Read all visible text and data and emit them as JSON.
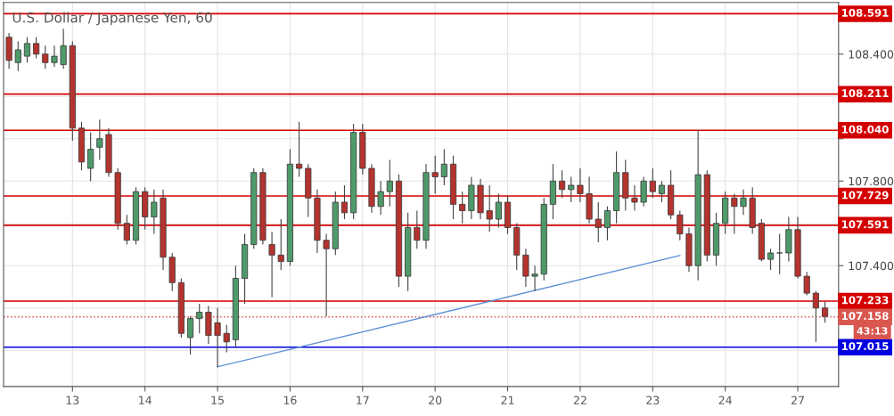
{
  "chart_data": {
    "type": "candlestick",
    "title": "U.S. Dollar / Japanese Yen, 60",
    "categories": [
      null,
      null,
      null,
      null,
      null,
      null,
      null,
      "13",
      null,
      null,
      null,
      null,
      null,
      null,
      null,
      "14",
      null,
      null,
      null,
      null,
      null,
      null,
      null,
      "15",
      null,
      null,
      null,
      null,
      null,
      null,
      null,
      "16",
      null,
      null,
      null,
      null,
      null,
      null,
      null,
      "17",
      null,
      null,
      null,
      null,
      null,
      null,
      null,
      "20",
      null,
      null,
      null,
      null,
      null,
      null,
      null,
      "21",
      null,
      null,
      null,
      null,
      null,
      null,
      null,
      "22",
      null,
      null,
      null,
      null,
      null,
      null,
      null,
      "23",
      null,
      null,
      null,
      null,
      null,
      null,
      null,
      "24",
      null,
      null,
      null,
      null,
      null,
      null,
      null,
      "27",
      null,
      null,
      null
    ],
    "ohlc": [
      [
        108.48,
        108.5,
        108.33,
        108.37
      ],
      [
        108.36,
        108.46,
        108.32,
        108.42
      ],
      [
        108.39,
        108.48,
        108.36,
        108.45
      ],
      [
        108.45,
        108.48,
        108.38,
        108.4
      ],
      [
        108.4,
        108.44,
        108.33,
        108.36
      ],
      [
        108.36,
        108.44,
        108.34,
        108.39
      ],
      [
        108.35,
        108.52,
        108.33,
        108.44
      ],
      [
        108.44,
        108.46,
        107.99,
        108.05
      ],
      [
        108.05,
        108.08,
        107.85,
        107.89
      ],
      [
        107.86,
        108.03,
        107.8,
        107.95
      ],
      [
        107.96,
        108.09,
        107.9,
        108.0
      ],
      [
        108.02,
        108.05,
        107.82,
        107.84
      ],
      [
        107.84,
        107.86,
        107.57,
        107.6
      ],
      [
        107.6,
        107.64,
        107.5,
        107.52
      ],
      [
        107.52,
        107.77,
        107.5,
        107.75
      ],
      [
        107.75,
        107.77,
        107.57,
        107.63
      ],
      [
        107.63,
        107.76,
        107.55,
        107.7
      ],
      [
        107.72,
        107.76,
        107.38,
        107.44
      ],
      [
        107.44,
        107.46,
        107.28,
        107.32
      ],
      [
        107.32,
        107.34,
        107.06,
        107.08
      ],
      [
        107.06,
        107.16,
        106.98,
        107.15
      ],
      [
        107.15,
        107.22,
        107.08,
        107.18
      ],
      [
        107.18,
        107.21,
        107.03,
        107.07
      ],
      [
        107.13,
        107.2,
        106.92,
        107.07
      ],
      [
        107.08,
        107.12,
        106.99,
        107.04
      ],
      [
        107.05,
        107.4,
        107.01,
        107.34
      ],
      [
        107.34,
        107.55,
        107.22,
        107.5
      ],
      [
        107.5,
        107.86,
        107.48,
        107.84
      ],
      [
        107.84,
        107.86,
        107.5,
        107.52
      ],
      [
        107.5,
        107.56,
        107.25,
        107.45
      ],
      [
        107.45,
        107.62,
        107.38,
        107.42
      ],
      [
        107.42,
        107.95,
        107.4,
        107.88
      ],
      [
        107.88,
        108.08,
        107.82,
        107.86
      ],
      [
        107.86,
        107.88,
        107.63,
        107.72
      ],
      [
        107.72,
        107.76,
        107.46,
        107.52
      ],
      [
        107.52,
        107.55,
        107.16,
        107.48
      ],
      [
        107.48,
        107.75,
        107.45,
        107.7
      ],
      [
        107.7,
        107.78,
        107.62,
        107.65
      ],
      [
        107.65,
        108.07,
        107.62,
        108.03
      ],
      [
        108.03,
        108.07,
        107.83,
        107.86
      ],
      [
        107.86,
        107.88,
        107.65,
        107.68
      ],
      [
        107.68,
        107.8,
        107.64,
        107.75
      ],
      [
        107.75,
        107.9,
        107.68,
        107.8
      ],
      [
        107.8,
        107.83,
        107.3,
        107.35
      ],
      [
        107.35,
        107.65,
        107.28,
        107.58
      ],
      [
        107.58,
        107.66,
        107.48,
        107.52
      ],
      [
        107.52,
        107.88,
        107.48,
        107.84
      ],
      [
        107.84,
        107.92,
        107.74,
        107.82
      ],
      [
        107.82,
        107.95,
        107.78,
        107.88
      ],
      [
        107.88,
        107.92,
        107.62,
        107.69
      ],
      [
        107.69,
        107.75,
        107.6,
        107.66
      ],
      [
        107.66,
        107.82,
        107.62,
        107.78
      ],
      [
        107.78,
        107.81,
        107.62,
        107.65
      ],
      [
        107.66,
        107.78,
        107.56,
        107.62
      ],
      [
        107.62,
        107.74,
        107.58,
        107.7
      ],
      [
        107.7,
        107.73,
        107.55,
        107.58
      ],
      [
        107.58,
        107.6,
        107.38,
        107.45
      ],
      [
        107.45,
        107.48,
        107.3,
        107.35
      ],
      [
        107.35,
        107.4,
        107.28,
        107.36
      ],
      [
        107.36,
        107.72,
        107.33,
        107.69
      ],
      [
        107.69,
        107.88,
        107.62,
        107.8
      ],
      [
        107.8,
        107.85,
        107.72,
        107.76
      ],
      [
        107.76,
        107.82,
        107.7,
        107.78
      ],
      [
        107.78,
        107.86,
        107.7,
        107.74
      ],
      [
        107.74,
        107.82,
        107.6,
        107.62
      ],
      [
        107.62,
        107.7,
        107.51,
        107.58
      ],
      [
        107.58,
        107.68,
        107.52,
        107.66
      ],
      [
        107.66,
        107.94,
        107.6,
        107.84
      ],
      [
        107.84,
        107.9,
        107.66,
        107.72
      ],
      [
        107.72,
        107.78,
        107.66,
        107.7
      ],
      [
        107.7,
        107.82,
        107.68,
        107.8
      ],
      [
        107.8,
        107.86,
        107.72,
        107.75
      ],
      [
        107.74,
        107.8,
        107.7,
        107.78
      ],
      [
        107.78,
        107.85,
        107.62,
        107.64
      ],
      [
        107.64,
        107.66,
        107.52,
        107.55
      ],
      [
        107.55,
        107.58,
        107.37,
        107.4
      ],
      [
        107.4,
        108.04,
        107.33,
        107.83
      ],
      [
        107.83,
        107.85,
        107.42,
        107.45
      ],
      [
        107.45,
        107.65,
        107.4,
        107.6
      ],
      [
        107.6,
        107.75,
        107.55,
        107.72
      ],
      [
        107.72,
        107.74,
        107.55,
        107.68
      ],
      [
        107.68,
        107.76,
        107.64,
        107.72
      ],
      [
        107.72,
        107.77,
        107.55,
        107.58
      ],
      [
        107.6,
        107.62,
        107.42,
        107.43
      ],
      [
        107.43,
        107.48,
        107.38,
        107.46
      ],
      [
        107.46,
        107.55,
        107.36,
        107.46
      ],
      [
        107.46,
        107.63,
        107.42,
        107.57
      ],
      [
        107.57,
        107.63,
        107.34,
        107.35
      ],
      [
        107.35,
        107.37,
        107.26,
        107.27
      ],
      [
        107.27,
        107.28,
        107.04,
        107.2
      ],
      [
        107.2,
        107.23,
        107.13,
        107.16
      ]
    ],
    "colors": [
      "#b5332e",
      "#4f9a6a",
      "#4f9a6a",
      "#b5332e",
      "#b5332e",
      "#4f9a6a",
      "#4f9a6a",
      "#b5332e",
      "#b5332e",
      "#4f9a6a",
      "#4f9a6a",
      "#b5332e",
      "#b5332e",
      "#b5332e",
      "#4f9a6a",
      "#b5332e",
      "#4f9a6a",
      "#b5332e",
      "#b5332e",
      "#b5332e",
      "#4f9a6a",
      "#4f9a6a",
      "#b5332e",
      "#b5332e",
      "#b5332e",
      "#4f9a6a",
      "#4f9a6a",
      "#4f9a6a",
      "#b5332e",
      "#b5332e",
      "#b5332e",
      "#4f9a6a",
      "#b5332e",
      "#b5332e",
      "#b5332e",
      "#b5332e",
      "#4f9a6a",
      "#b5332e",
      "#4f9a6a",
      "#b5332e",
      "#b5332e",
      "#4f9a6a",
      "#4f9a6a",
      "#b5332e",
      "#4f9a6a",
      "#b5332e",
      "#4f9a6a",
      "#b5332e",
      "#4f9a6a",
      "#b5332e",
      "#b5332e",
      "#4f9a6a",
      "#b5332e",
      "#b5332e",
      "#4f9a6a",
      "#b5332e",
      "#b5332e",
      "#b5332e",
      "#4f9a6a",
      "#4f9a6a",
      "#4f9a6a",
      "#b5332e",
      "#4f9a6a",
      "#b5332e",
      "#b5332e",
      "#b5332e",
      "#4f9a6a",
      "#4f9a6a",
      "#b5332e",
      "#b5332e",
      "#4f9a6a",
      "#b5332e",
      "#4f9a6a",
      "#b5332e",
      "#b5332e",
      "#b5332e",
      "#4f9a6a",
      "#b5332e",
      "#4f9a6a",
      "#4f9a6a",
      "#b5332e",
      "#4f9a6a",
      "#b5332e",
      "#b5332e",
      "#4f9a6a",
      "#4f9a6a",
      "#4f9a6a",
      "#b5332e",
      "#b5332e",
      "#b5332e",
      "#b5332e"
    ],
    "series": [
      {
        "type": "line",
        "color": "#5b8fd6",
        "values": [
          null,
          null,
          null,
          null,
          null,
          null,
          null,
          null,
          null,
          null,
          null,
          null,
          null,
          null,
          null,
          null,
          null,
          null,
          null,
          null,
          null,
          null,
          null,
          106.922,
          null,
          null,
          null,
          null,
          null,
          null,
          null,
          null,
          null,
          null,
          null,
          null,
          null,
          null,
          null,
          null,
          null,
          null,
          null,
          null,
          null,
          null,
          null,
          null,
          null,
          null,
          null,
          null,
          null,
          null,
          null,
          null,
          null,
          null,
          null,
          null,
          null,
          null,
          null,
          null,
          null,
          null,
          null,
          null,
          null,
          null,
          null,
          null,
          null,
          null,
          107.448,
          null,
          null,
          null,
          null,
          null,
          null,
          null,
          null,
          null,
          null,
          null,
          null,
          null,
          null,
          null,
          null
        ]
      }
    ],
    "ylim": [
      106.829,
      108.644
    ],
    "yticks": [
      {
        "value": 108.4,
        "label": "108.400"
      },
      {
        "value": 108.2,
        "label": null
      },
      {
        "value": 108.0,
        "label": null
      },
      {
        "value": 107.8,
        "label": "107.800"
      },
      {
        "value": 107.6,
        "label": null
      },
      {
        "value": 107.4,
        "label": "107.400"
      },
      {
        "value": 107.2,
        "label": null
      },
      {
        "value": 107.0,
        "label": null
      }
    ],
    "grid": true,
    "ref_lines": [
      {
        "axis": "y",
        "value": 108.591,
        "label": "108.591",
        "color": "#d40000",
        "line_style": "solid"
      },
      {
        "axis": "y",
        "value": 108.211,
        "label": "108.211",
        "color": "#d40000",
        "line_style": "solid"
      },
      {
        "axis": "y",
        "value": 108.04,
        "label": "108.040",
        "color": "#d40000",
        "line_style": "solid"
      },
      {
        "axis": "y",
        "value": 107.729,
        "label": "107.729",
        "color": "#d40000",
        "line_style": "solid"
      },
      {
        "axis": "y",
        "value": 107.591,
        "label": "107.591",
        "color": "#d40000",
        "line_style": "solid"
      },
      {
        "axis": "y",
        "value": 107.233,
        "label": "107.233",
        "color": "#d40000",
        "line_style": "solid"
      },
      {
        "axis": "y",
        "value": 107.158,
        "label": "107.158",
        "color": "#d9574f",
        "line_style": "dotted"
      },
      {
        "axis": "y",
        "value": 107.015,
        "label": "107.015",
        "color": "#0000e0",
        "line_style": "solid"
      }
    ],
    "annotations": [
      "43:13"
    ]
  }
}
